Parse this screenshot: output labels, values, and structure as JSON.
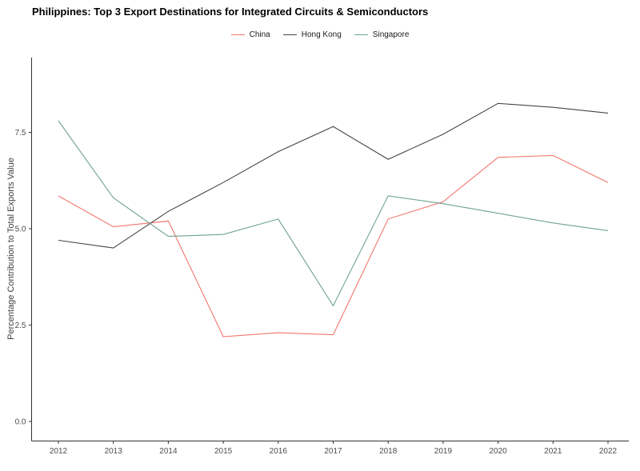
{
  "title": "Philippines: Top 3 Export Destinations for Integrated Circuits & Semiconductors",
  "chart_data": {
    "type": "line",
    "title": "Philippines: Top 3 Export Destinations for Integrated Circuits & Semiconductors",
    "x": [
      2012,
      2013,
      2014,
      2015,
      2016,
      2017,
      2018,
      2019,
      2020,
      2021,
      2022
    ],
    "xtick_labels": [
      "2012",
      "2013",
      "2014",
      "2015",
      "2016",
      "2017",
      "2018",
      "2019",
      "2020",
      "2021",
      "2022"
    ],
    "series": [
      {
        "name": "China",
        "color": "#f1766d",
        "values": [
          5.85,
          5.05,
          5.2,
          2.2,
          2.3,
          2.25,
          5.25,
          5.7,
          6.85,
          6.9,
          6.2
        ]
      },
      {
        "name": "Hong Kong",
        "color": "#454545",
        "values": [
          4.7,
          4.5,
          5.45,
          6.2,
          7.0,
          7.65,
          6.8,
          7.45,
          8.25,
          8.15,
          8.0
        ]
      },
      {
        "name": "Singapore",
        "color": "#6fa294",
        "values": [
          7.8,
          5.8,
          4.8,
          4.85,
          5.25,
          3.0,
          5.85,
          5.65,
          5.4,
          5.15,
          4.95
        ]
      }
    ],
    "xlabel": "",
    "ylabel": "Percentage Contribution to Total Exports Value",
    "ylim": [
      0,
      8.7
    ],
    "yticks": [
      0.0,
      2.5,
      5.0,
      7.5
    ],
    "ytick_labels": [
      "0.0",
      "2.5",
      "5.0",
      "7.5"
    ],
    "grid": "off",
    "legend_position": "top-center"
  },
  "colors": {
    "axis_text": "#4d4d4d",
    "axis_line": "#333333",
    "background": "#ffffff"
  }
}
